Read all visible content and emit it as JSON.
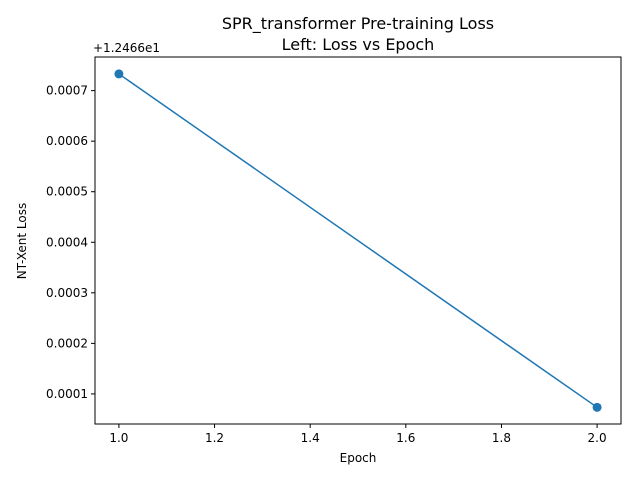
{
  "chart_data": {
    "type": "line",
    "title_line1": "SPR_transformer Pre-training Loss",
    "title_line2": "Left: Loss vs Epoch",
    "xlabel": "Epoch",
    "ylabel": "NT-Xent Loss",
    "y_offset_label": "+1.2466e1",
    "xlim": [
      0.95,
      2.05
    ],
    "ylim": [
      4.05e-05,
      0.0007665
    ],
    "x_ticks": [
      1.0,
      1.2,
      1.4,
      1.6,
      1.8,
      2.0
    ],
    "x_tick_labels": [
      "1.0",
      "1.2",
      "1.4",
      "1.6",
      "1.8",
      "2.0"
    ],
    "y_ticks": [
      0.0001,
      0.0002,
      0.0003,
      0.0004,
      0.0005,
      0.0006,
      0.0007
    ],
    "y_tick_labels": [
      "0.0001",
      "0.0002",
      "0.0003",
      "0.0004",
      "0.0005",
      "0.0006",
      "0.0007"
    ],
    "series": [
      {
        "x": [
          1.0,
          2.0
        ],
        "y": [
          0.000733,
          7.35e-05
        ],
        "color": "#1f77b4",
        "marker": "circle"
      }
    ],
    "grid": false
  }
}
